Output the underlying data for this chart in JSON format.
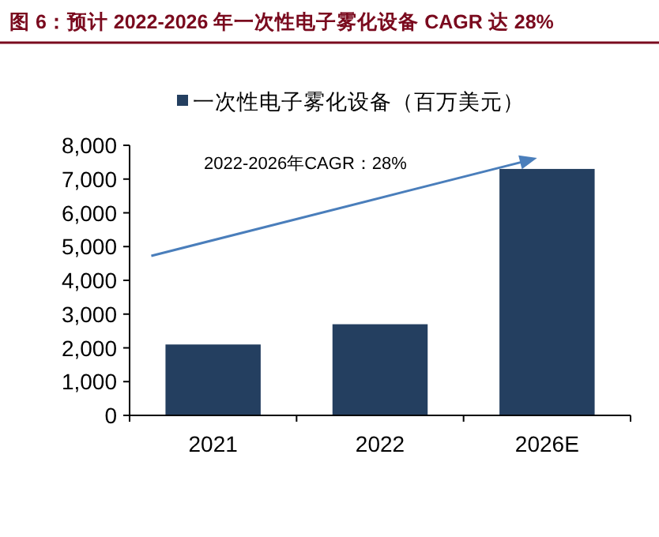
{
  "chart_data": {
    "type": "bar",
    "title": "图 6：预计 2022-2026 年一次性电子雾化设备 CAGR 达 28%",
    "categories": [
      "2021",
      "2022",
      "2026E"
    ],
    "series": [
      {
        "name": "一次性电子雾化设备（百万美元）",
        "color": "#243f60",
        "values": [
          2100,
          2700,
          7300
        ]
      }
    ],
    "ylim": [
      0,
      8000
    ],
    "yticks": [
      {
        "value": 0,
        "label": "0"
      },
      {
        "value": 1000,
        "label": "1,000"
      },
      {
        "value": 2000,
        "label": "2,000"
      },
      {
        "value": 3000,
        "label": "3,000"
      },
      {
        "value": 4000,
        "label": "4,000"
      },
      {
        "value": 5000,
        "label": "5,000"
      },
      {
        "value": 6000,
        "label": "6,000"
      },
      {
        "value": 7000,
        "label": "7,000"
      },
      {
        "value": 8000,
        "label": "8,000"
      }
    ],
    "annotations": [
      "2022-2026年CAGR：28%"
    ],
    "legend": "top",
    "grid": false
  }
}
